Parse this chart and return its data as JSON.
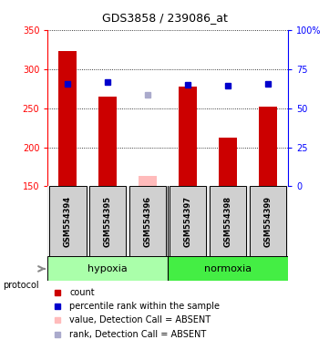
{
  "title": "GDS3858 / 239086_at",
  "samples": [
    "GSM554394",
    "GSM554395",
    "GSM554396",
    "GSM554397",
    "GSM554398",
    "GSM554399"
  ],
  "bar_values": [
    323,
    265,
    null,
    278,
    212,
    252
  ],
  "absent_bar_values": [
    null,
    null,
    163,
    null,
    null,
    null
  ],
  "absent_bar_color": "#ffbbbb",
  "dot_values": [
    281,
    283,
    null,
    280,
    279,
    281
  ],
  "dot_color": "#0000cc",
  "absent_dot_values": [
    null,
    null,
    267,
    null,
    null,
    null
  ],
  "absent_dot_color": "#aaaacc",
  "ylim_left": [
    150,
    350
  ],
  "yticks_left": [
    150,
    200,
    250,
    300,
    350
  ],
  "yticks_right": [
    0,
    25,
    50,
    75,
    100
  ],
  "yticklabels_right": [
    "0",
    "25",
    "50",
    "75",
    "100%"
  ],
  "groups": [
    {
      "label": "hypoxia",
      "start": 0,
      "end": 2,
      "color": "#aaffaa"
    },
    {
      "label": "normoxia",
      "start": 3,
      "end": 5,
      "color": "#44ee44"
    }
  ],
  "legend_items": [
    {
      "color": "#cc0000",
      "label": "count"
    },
    {
      "color": "#0000cc",
      "label": "percentile rank within the sample"
    },
    {
      "color": "#ffbbbb",
      "label": "value, Detection Call = ABSENT"
    },
    {
      "color": "#aaaacc",
      "label": "rank, Detection Call = ABSENT"
    }
  ],
  "bar_bottom": 150,
  "bar_color": "#cc0000",
  "bar_width": 0.45,
  "dot_marker": "s",
  "dot_size": 4,
  "title_fontsize": 9,
  "tick_fontsize": 7,
  "sample_fontsize": 6,
  "protocol_fontsize": 8,
  "legend_fontsize": 7
}
